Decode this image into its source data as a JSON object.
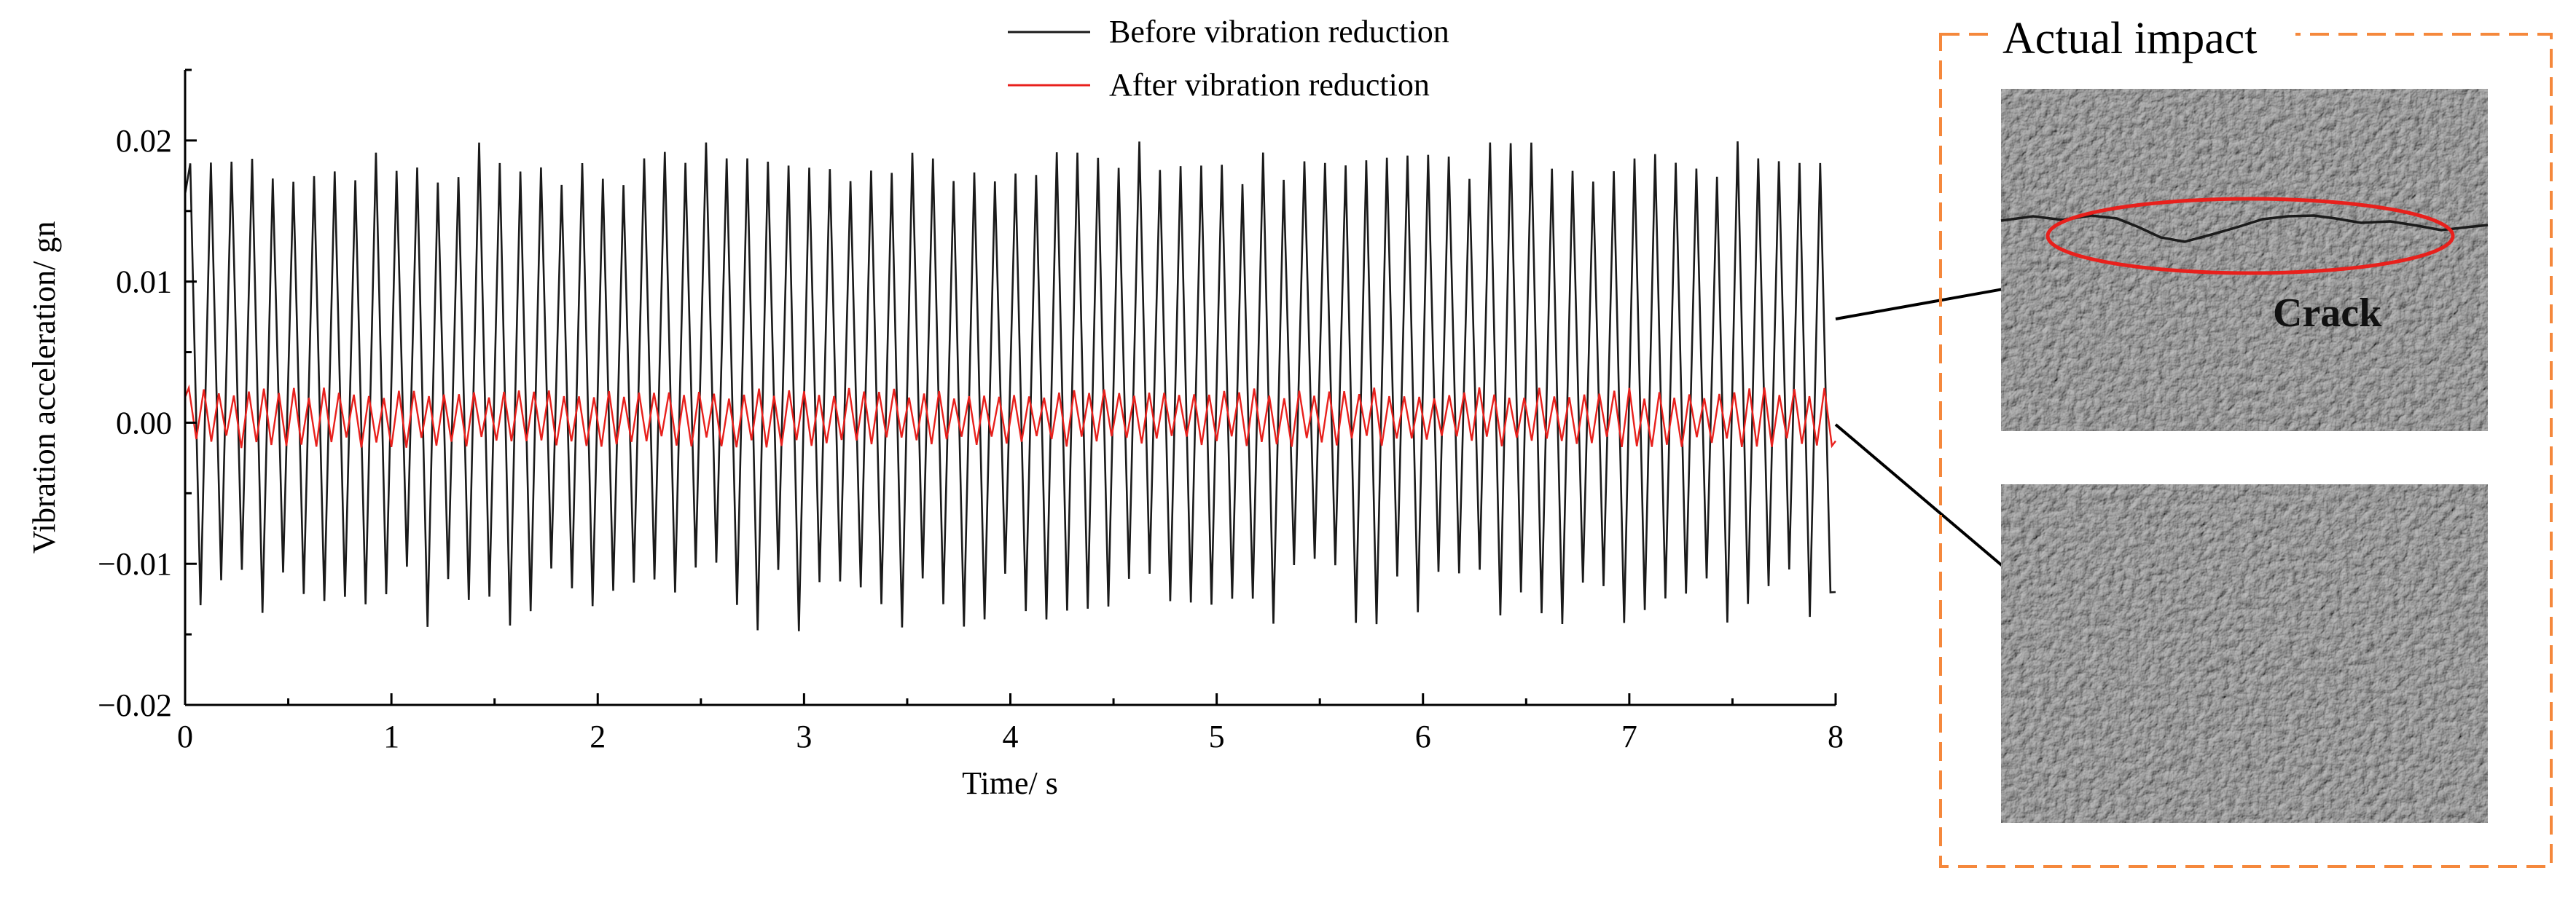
{
  "chart_data": {
    "type": "line",
    "xlabel": "Time/ s",
    "ylabel": "Vibration acceleration/ gn",
    "xlim": [
      0,
      8
    ],
    "ylim": [
      -0.02,
      0.025
    ],
    "xticks": [
      0,
      1,
      2,
      3,
      4,
      5,
      6,
      7,
      8
    ],
    "xtick_labels": [
      "0",
      "1",
      "2",
      "3",
      "4",
      "5",
      "6",
      "7",
      "8"
    ],
    "yticks": [
      -0.02,
      -0.01,
      0.0,
      0.01,
      0.02
    ],
    "ytick_labels": [
      "−0.02",
      "−0.01",
      "0.00",
      "0.01",
      "0.02"
    ],
    "grid": false,
    "legend_position": "top-center",
    "series": [
      {
        "name": "Before vibration reduction",
        "color": "#1a1a1a",
        "cycles": 80,
        "amplitude_range": [
          -0.015,
          0.02
        ],
        "typical_peak": 0.018,
        "typical_trough": -0.012
      },
      {
        "name": "After vibration reduction",
        "color": "#e8201c",
        "cycles": 110,
        "amplitude_range": [
          -0.0018,
          0.0025
        ],
        "typical_peak": 0.002,
        "typical_trough": -0.0013
      }
    ]
  },
  "inset": {
    "title": "Actual impact",
    "crack_label": "Crack",
    "frame_color": "#f5883c",
    "ellipse_color": "#e8201c",
    "texture_color": "#9a9a9a"
  }
}
